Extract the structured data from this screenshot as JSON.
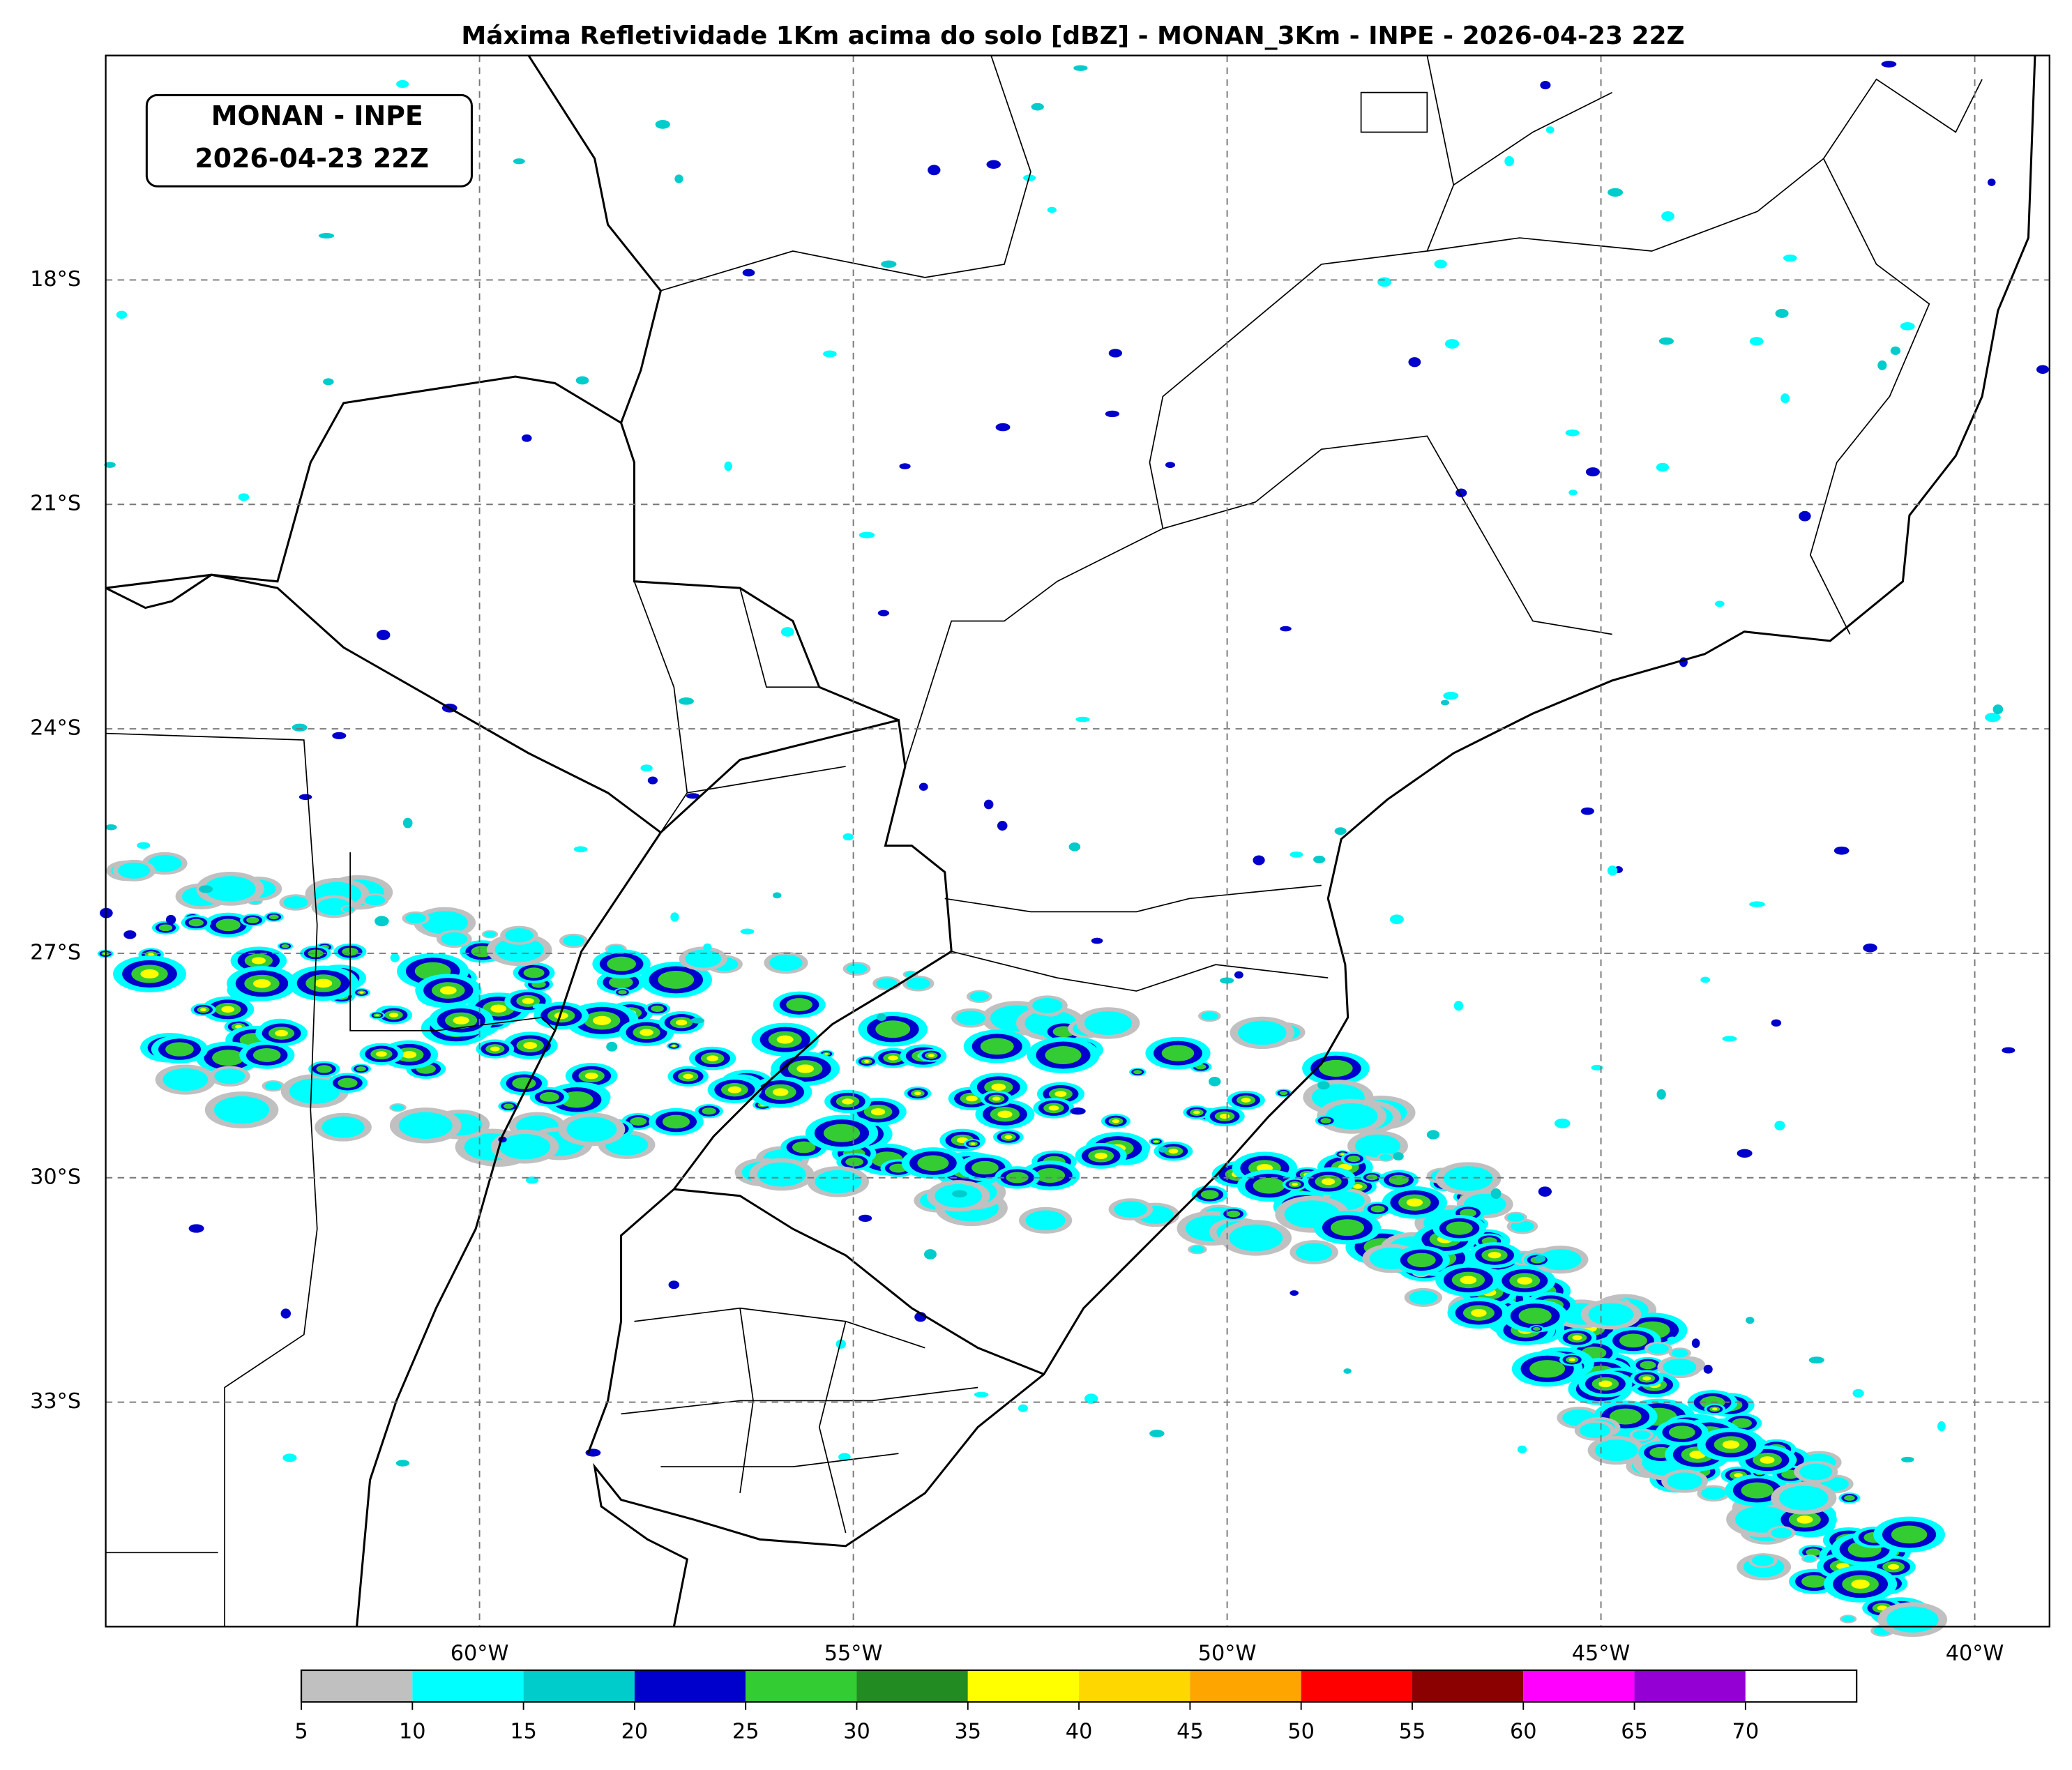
{
  "chart_data": {
    "type": "map",
    "title": "Máxima Refletividade 1Km acima do solo [dBZ] - MONAN_3Km - INPE - 2026-04-23 22Z",
    "annotation": [
      "MONAN - INPE",
      "2026-04-23 22Z"
    ],
    "xlim": [
      -65,
      -39
    ],
    "ylim": [
      -36,
      -15
    ],
    "xticks": [
      {
        "value": -60,
        "label": "60°W"
      },
      {
        "value": -55,
        "label": "55°W"
      },
      {
        "value": -50,
        "label": "50°W"
      },
      {
        "value": -45,
        "label": "45°W"
      },
      {
        "value": -40,
        "label": "40°W"
      }
    ],
    "yticks": [
      {
        "value": -18,
        "label": "18°S"
      },
      {
        "value": -21,
        "label": "21°S"
      },
      {
        "value": -24,
        "label": "24°S"
      },
      {
        "value": -27,
        "label": "27°S"
      },
      {
        "value": -30,
        "label": "30°S"
      },
      {
        "value": -33,
        "label": "33°S"
      }
    ],
    "grid": true,
    "colorbar": {
      "ticks": [
        5,
        10,
        15,
        20,
        25,
        30,
        35,
        40,
        45,
        50,
        55,
        60,
        65,
        70
      ],
      "colors": [
        "#c0c0c0",
        "#00ffff",
        "#00cccc",
        "#0000cc",
        "#33cc33",
        "#228b22",
        "#ffff00",
        "#ffd700",
        "#ffa500",
        "#ff0000",
        "#8b0000",
        "#ff00ff",
        "#9400d3",
        "#ffffff"
      ]
    }
  }
}
